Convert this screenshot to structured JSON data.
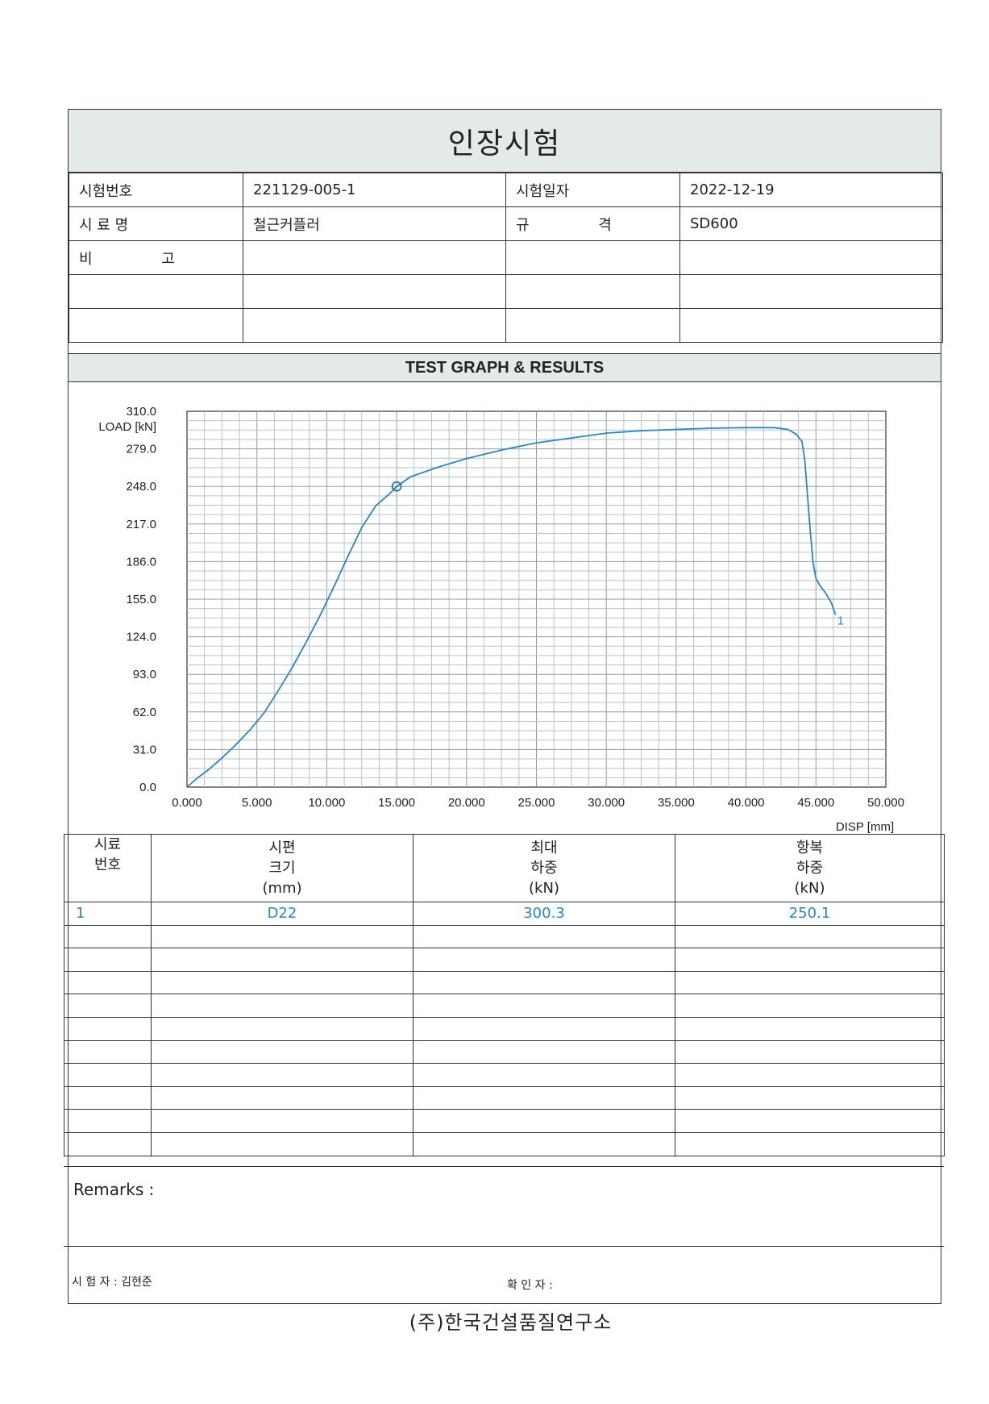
{
  "title": "인장시험",
  "info": {
    "test_no_label": "시험번호",
    "test_no": "221129-005-1",
    "test_date_label": "시험일자",
    "test_date": "2022-12-19",
    "sample_name_label": "시 료 명",
    "sample_name": "철근커플러",
    "spec_label": "규 격",
    "spec": "SD600",
    "remark_label": "비 고"
  },
  "section_title": "TEST GRAPH & RESULTS",
  "chart_data": {
    "type": "line",
    "ylabel": "LOAD [kN]",
    "xlabel": "DISP [mm]",
    "xlim": [
      0,
      50
    ],
    "ylim": [
      0,
      310
    ],
    "x_ticks": [
      "0.000",
      "5.000",
      "10.000",
      "15.000",
      "20.000",
      "25.000",
      "30.000",
      "35.000",
      "40.000",
      "45.000",
      "50.000"
    ],
    "y_ticks": [
      "0.0",
      "31.0",
      "62.0",
      "93.0",
      "124.0",
      "155.0",
      "186.0",
      "217.0",
      "248.0",
      "279.0",
      "310.0"
    ],
    "grid": true,
    "line_color": "#2a86bf",
    "series": [
      {
        "name": "1",
        "x": [
          0,
          0.3,
          0.8,
          1.5,
          2.5,
          3.5,
          4.5,
          5.5,
          6.5,
          7.5,
          8.5,
          9.5,
          10.5,
          11.5,
          12.5,
          13.5,
          14.5,
          15.0,
          16.0,
          18.0,
          20.0,
          22.5,
          25.0,
          27.5,
          30.0,
          32.5,
          35.0,
          37.5,
          40.0,
          42.0,
          43.0,
          43.6,
          44.0,
          44.2,
          44.4,
          44.6,
          44.8,
          45.0,
          45.3,
          45.7,
          46.1,
          46.4
        ],
        "y": [
          0,
          3,
          8,
          14,
          24,
          35,
          47,
          61,
          79,
          98,
          119,
          141,
          165,
          190,
          214,
          232,
          242,
          248,
          256,
          264,
          271,
          278,
          284,
          288,
          292,
          294,
          295,
          296,
          296.5,
          296.5,
          295,
          291,
          285,
          270,
          240,
          210,
          185,
          172,
          166,
          160,
          152,
          142
        ]
      }
    ],
    "marker": {
      "x": 15.0,
      "y": 248.0
    },
    "series_end_label": "1"
  },
  "results": {
    "headers": [
      [
        "시료",
        "번호"
      ],
      [
        "시편",
        "크기",
        "(mm)"
      ],
      [
        "최대",
        "하중",
        "(kN)"
      ],
      [
        "항복",
        "하중",
        "(kN)"
      ]
    ],
    "rows": [
      [
        "1",
        "D22",
        "300.3",
        "250.1"
      ]
    ]
  },
  "remarks_label": "Remarks :",
  "tester": "시 험 자 : 김현준",
  "confirm": "확 인 자 :",
  "footer": "(주)한국건설품질연구소"
}
